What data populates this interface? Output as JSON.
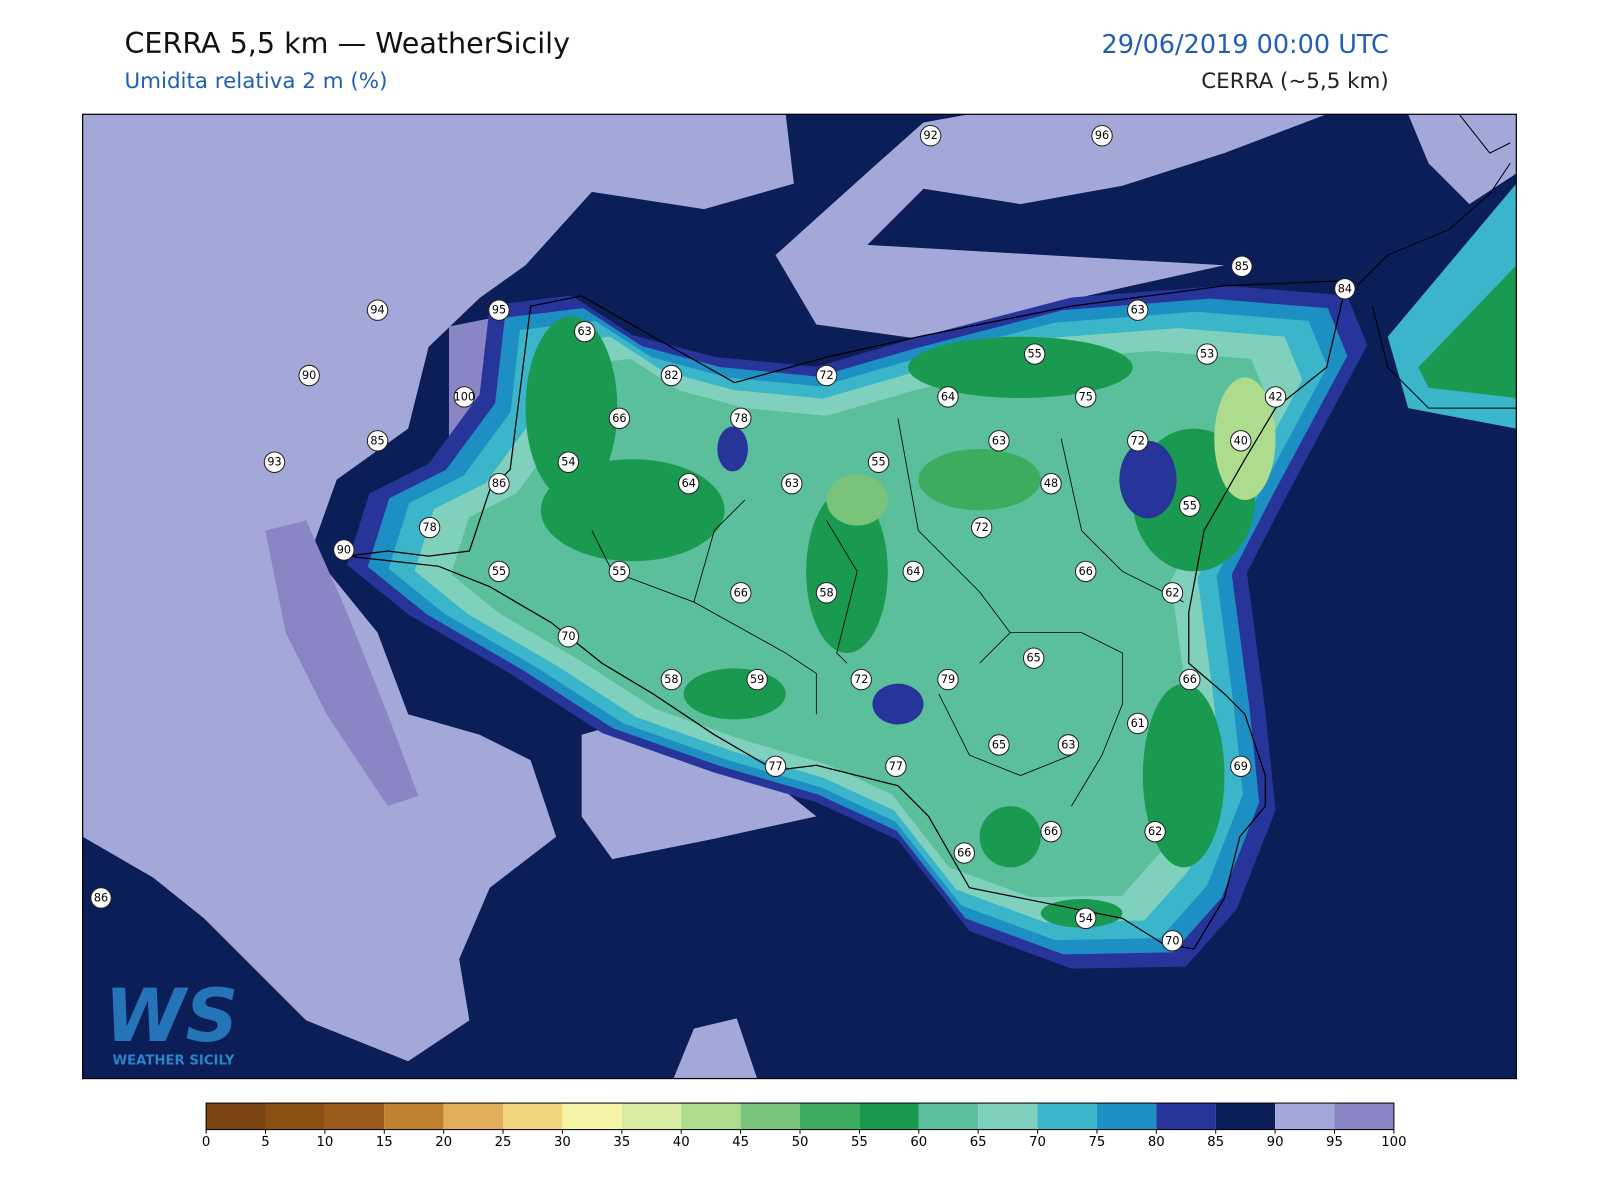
{
  "header": {
    "title": "CERRA 5,5 km — WeatherSicily",
    "subtitle": "Umidita relativa 2 m (%)",
    "datetime": "29/06/2019 00:00 UTC",
    "model": "CERRA (~5,5 km)"
  },
  "stations": [
    92,
    96,
    85,
    84,
    94,
    95,
    63,
    63,
    55,
    53,
    90,
    100,
    82,
    72,
    64,
    75,
    42,
    66,
    78,
    85,
    63,
    72,
    40,
    93,
    54,
    55,
    86,
    64,
    63,
    48,
    55,
    78,
    72,
    90,
    55,
    55,
    64,
    66,
    66,
    58,
    62,
    70,
    65,
    58,
    59,
    72,
    79,
    66,
    61,
    65,
    63,
    77,
    77,
    69,
    66,
    62,
    66,
    86,
    54,
    70
  ],
  "colorbar": {
    "ticks": [
      0,
      5,
      10,
      15,
      20,
      25,
      30,
      35,
      40,
      45,
      50,
      55,
      60,
      65,
      70,
      75,
      80,
      85,
      90,
      95,
      100
    ],
    "colors": [
      "#7a4510",
      "#8c4f14",
      "#9a5a1a",
      "#c0812e",
      "#e0ae5a",
      "#f0d47e",
      "#f6f4a6",
      "#d8eca4",
      "#aedc8e",
      "#79c47a",
      "#3dac5e",
      "#1a9a50",
      "#5bbf9c",
      "#80d0be",
      "#3bb5c9",
      "#1e8fc3",
      "#27359a",
      "#0b1e57",
      "#a3a8d9",
      "#8a86c6"
    ]
  },
  "logo": {
    "mark": "WS",
    "name": "WEATHER SICILY"
  }
}
